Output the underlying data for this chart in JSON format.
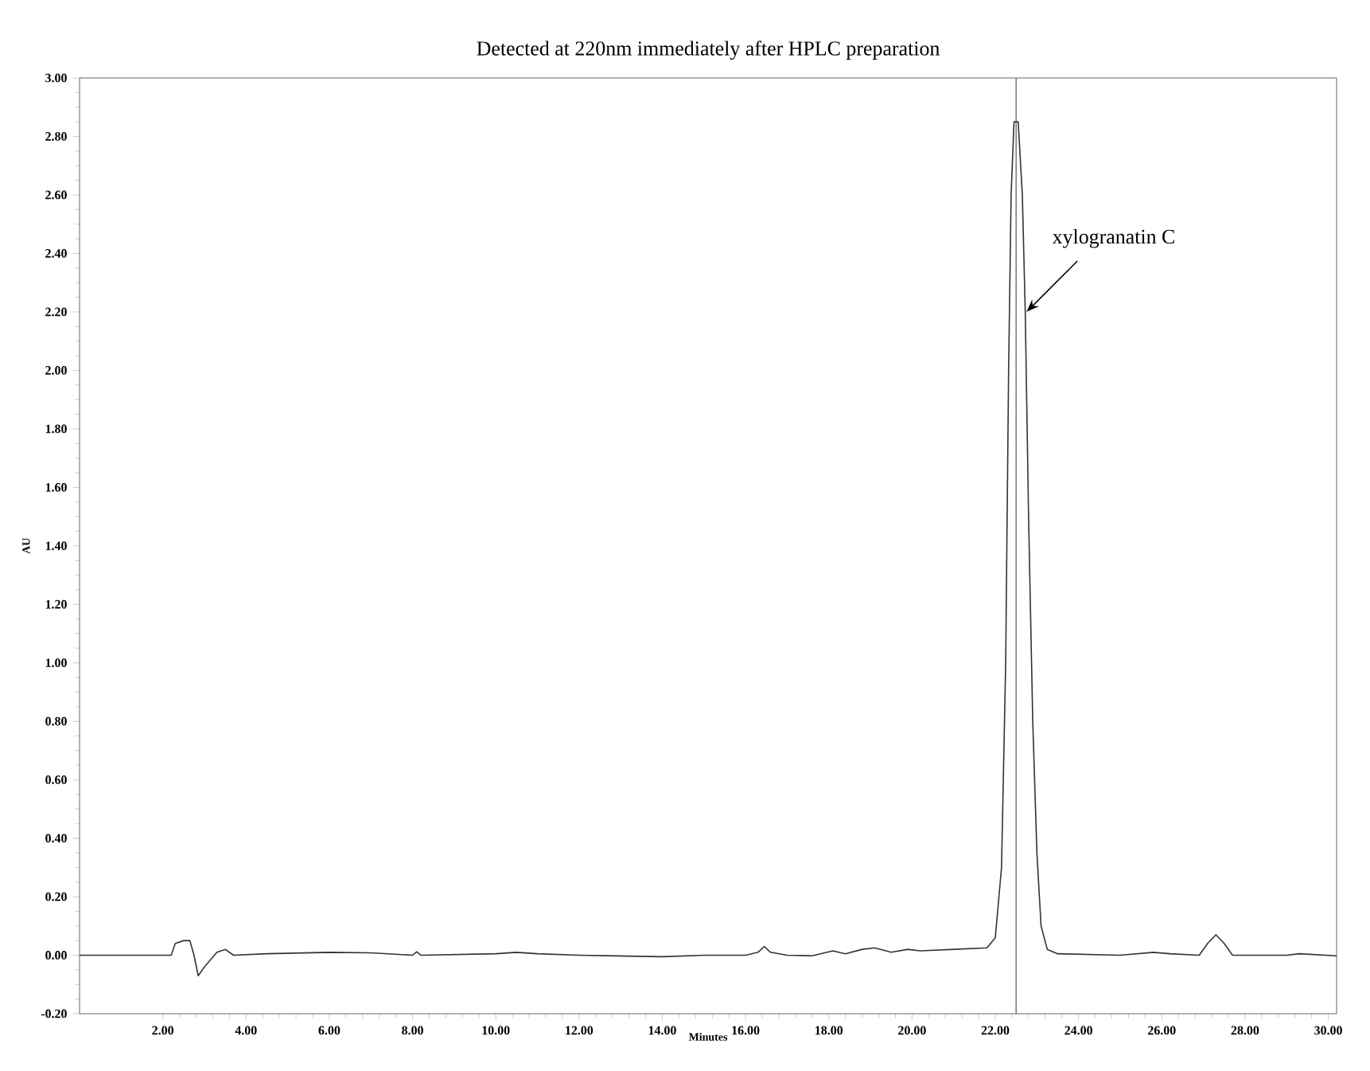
{
  "chart_data": {
    "type": "line",
    "title": "Detected at 220nm immediately after HPLC preparation",
    "xlabel": "Minutes",
    "ylabel": "AU",
    "xlim": [
      0,
      30.2
    ],
    "ylim": [
      -0.2,
      3.0
    ],
    "xticks": [
      {
        "value": 2,
        "label": "2.00"
      },
      {
        "value": 4,
        "label": "4.00"
      },
      {
        "value": 6,
        "label": "6.00"
      },
      {
        "value": 8,
        "label": "8.00"
      },
      {
        "value": 10,
        "label": "10.00"
      },
      {
        "value": 12,
        "label": "12.00"
      },
      {
        "value": 14,
        "label": "14.00"
      },
      {
        "value": 16,
        "label": "16.00"
      },
      {
        "value": 18,
        "label": "18.00"
      },
      {
        "value": 20,
        "label": "20.00"
      },
      {
        "value": 22,
        "label": "22.00"
      },
      {
        "value": 24,
        "label": "24.00"
      },
      {
        "value": 26,
        "label": "26.00"
      },
      {
        "value": 28,
        "label": "28.00"
      },
      {
        "value": 30,
        "label": "30.00"
      }
    ],
    "yticks": [
      {
        "value": -0.2,
        "label": "-0.20"
      },
      {
        "value": 0,
        "label": "0.00"
      },
      {
        "value": 0.2,
        "label": "0.20"
      },
      {
        "value": 0.4,
        "label": "0.40"
      },
      {
        "value": 0.6,
        "label": "0.60"
      },
      {
        "value": 0.8,
        "label": "0.80"
      },
      {
        "value": 1.0,
        "label": "1.00"
      },
      {
        "value": 1.2,
        "label": "1.20"
      },
      {
        "value": 1.4,
        "label": "1.40"
      },
      {
        "value": 1.6,
        "label": "1.60"
      },
      {
        "value": 1.8,
        "label": "1.80"
      },
      {
        "value": 2.0,
        "label": "2.00"
      },
      {
        "value": 2.2,
        "label": "2.20"
      },
      {
        "value": 2.4,
        "label": "2.40"
      },
      {
        "value": 2.6,
        "label": "2.60"
      },
      {
        "value": 2.8,
        "label": "2.80"
      },
      {
        "value": 3.0,
        "label": "3.00"
      }
    ],
    "grid": false,
    "ref_lines": [
      {
        "axis": "x",
        "value": 22.5,
        "color": "#555555"
      }
    ],
    "annotations": [
      {
        "text": "xylogranatin C",
        "x": 22.75,
        "y": 2.2
      }
    ],
    "series": [
      {
        "color": "#333333",
        "x": [
          0,
          2.2,
          2.3,
          2.5,
          2.65,
          2.75,
          2.85,
          3.0,
          3.3,
          3.5,
          3.7,
          4.5,
          6,
          7,
          8,
          8.1,
          8.2,
          10,
          10.5,
          11,
          12,
          14,
          15,
          16,
          16.3,
          16.45,
          16.6,
          17,
          17.6,
          18.1,
          18.4,
          18.8,
          19.1,
          19.5,
          19.9,
          20.2,
          21,
          21.8,
          22.0,
          22.15,
          22.25,
          22.32,
          22.38,
          22.45,
          22.55,
          22.65,
          22.72,
          22.8,
          22.9,
          23.0,
          23.1,
          23.25,
          23.5,
          25,
          25.8,
          26.2,
          26.9,
          27.1,
          27.3,
          27.5,
          27.7,
          29,
          29.3,
          30.2
        ],
        "values": [
          0,
          0,
          0.04,
          0.05,
          0.05,
          0.0,
          -0.07,
          -0.04,
          0.01,
          0.02,
          0.0,
          0.005,
          0.01,
          0.008,
          0.0,
          0.012,
          0.0,
          0.005,
          0.01,
          0.005,
          0.0,
          -0.005,
          0.0,
          0.0,
          0.01,
          0.03,
          0.01,
          0.0,
          -0.002,
          0.015,
          0.005,
          0.02,
          0.025,
          0.01,
          0.02,
          0.015,
          0.02,
          0.025,
          0.06,
          0.3,
          1.0,
          2.0,
          2.6,
          2.85,
          2.85,
          2.6,
          2.2,
          1.5,
          0.8,
          0.35,
          0.1,
          0.02,
          0.005,
          0.0,
          0.01,
          0.005,
          0.0,
          0.04,
          0.07,
          0.04,
          0.0,
          0.0,
          0.005,
          -0.002
        ]
      }
    ]
  }
}
